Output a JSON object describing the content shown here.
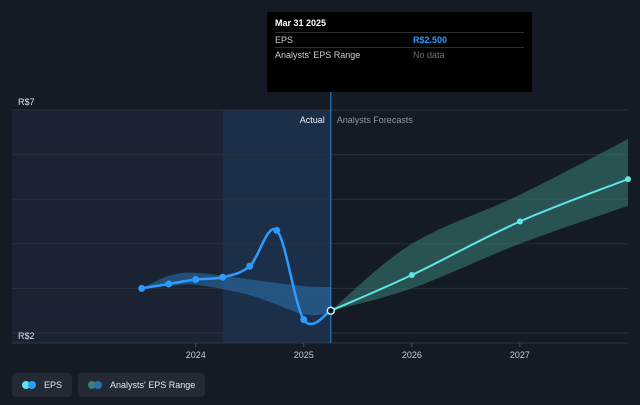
{
  "tooltip": {
    "date": "Mar 31 2025",
    "rows": [
      {
        "label": "EPS",
        "value": "R$2.500"
      },
      {
        "label": "Analysts' EPS Range",
        "value": "No data"
      }
    ]
  },
  "labels": {
    "actual": "Actual",
    "forecasts": "Analysts Forecasts"
  },
  "legend": {
    "eps": "EPS",
    "range": "Analysts' EPS Range"
  },
  "colors": {
    "background": "#151b24",
    "eps_line": "#2e9bff",
    "forecast_line": "#5ee6e6",
    "actual_band": "#2a72b0",
    "forecast_band": "#3a7f79",
    "past_shade": "#1d2a3c"
  },
  "chart_data": {
    "type": "line",
    "ylim": [
      2,
      7
    ],
    "y_ticks": [
      "R$2",
      "R$7"
    ],
    "x_ticks": [
      {
        "value": 2024.0,
        "label": "2024"
      },
      {
        "value": 2025.0,
        "label": "2025"
      },
      {
        "value": 2026.0,
        "label": "2026"
      },
      {
        "value": 2027.0,
        "label": "2027"
      }
    ],
    "xlim": [
      2022.3,
      2028.0
    ],
    "divider_x": 2025.25,
    "highlight_start_x": 2024.25,
    "series": [
      {
        "name": "EPS",
        "kind": "actual",
        "points": [
          [
            2023.5,
            3.0
          ],
          [
            2023.75,
            3.1
          ],
          [
            2024.0,
            3.2
          ],
          [
            2024.25,
            3.25
          ],
          [
            2024.5,
            3.5
          ],
          [
            2024.75,
            4.3
          ],
          [
            2025.0,
            2.3
          ],
          [
            2025.25,
            2.5
          ]
        ]
      },
      {
        "name": "EPS",
        "kind": "forecast",
        "points": [
          [
            2025.25,
            2.5
          ],
          [
            2026.0,
            3.3
          ],
          [
            2027.0,
            4.5
          ],
          [
            2028.0,
            5.45
          ]
        ]
      }
    ],
    "range_bands": [
      {
        "name": "Analysts' EPS Range",
        "kind": "actual",
        "upper": [
          [
            2023.5,
            3.0
          ],
          [
            2023.75,
            3.28
          ],
          [
            2024.0,
            3.35
          ],
          [
            2024.5,
            3.2
          ],
          [
            2025.0,
            3.05
          ],
          [
            2025.25,
            3.03
          ]
        ],
        "lower": [
          [
            2023.5,
            3.0
          ],
          [
            2023.75,
            3.05
          ],
          [
            2024.0,
            3.08
          ],
          [
            2024.5,
            2.85
          ],
          [
            2025.0,
            2.42
          ],
          [
            2025.25,
            2.45
          ]
        ]
      },
      {
        "name": "Analysts' EPS Range",
        "kind": "forecast",
        "upper": [
          [
            2025.25,
            2.5
          ],
          [
            2026.0,
            4.0
          ],
          [
            2027.0,
            5.1
          ],
          [
            2028.0,
            6.35
          ]
        ],
        "lower": [
          [
            2025.25,
            2.5
          ],
          [
            2026.0,
            3.0
          ],
          [
            2027.0,
            4.0
          ],
          [
            2028.0,
            4.85
          ]
        ]
      }
    ]
  }
}
